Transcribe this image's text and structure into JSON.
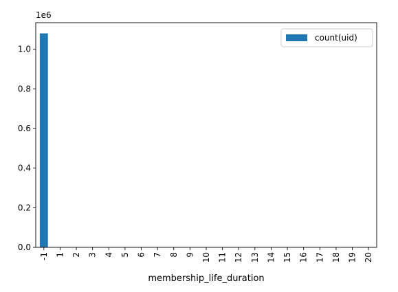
{
  "chart_data": {
    "type": "bar",
    "xlabel": "membership_life_duration",
    "ylabel": "",
    "y_offset_label": "1e6",
    "categories": [
      "-1",
      "1",
      "2",
      "3",
      "4",
      "5",
      "6",
      "7",
      "8",
      "9",
      "10",
      "11",
      "12",
      "13",
      "14",
      "15",
      "16",
      "17",
      "18",
      "19",
      "20"
    ],
    "series": [
      {
        "name": "count(uid)",
        "color": "#1f77b4",
        "values": [
          1080000,
          0,
          0,
          0,
          0,
          0,
          0,
          0,
          0,
          0,
          0,
          0,
          0,
          0,
          0,
          0,
          0,
          0,
          0,
          0,
          0
        ]
      }
    ],
    "ylim": [
      0,
      1134000
    ],
    "yticks": [
      0,
      200000,
      400000,
      600000,
      800000,
      1000000
    ],
    "ytick_labels": [
      "0.0",
      "0.2",
      "0.4",
      "0.6",
      "0.8",
      "1.0"
    ],
    "grid": false,
    "legend_position": "top-right"
  }
}
